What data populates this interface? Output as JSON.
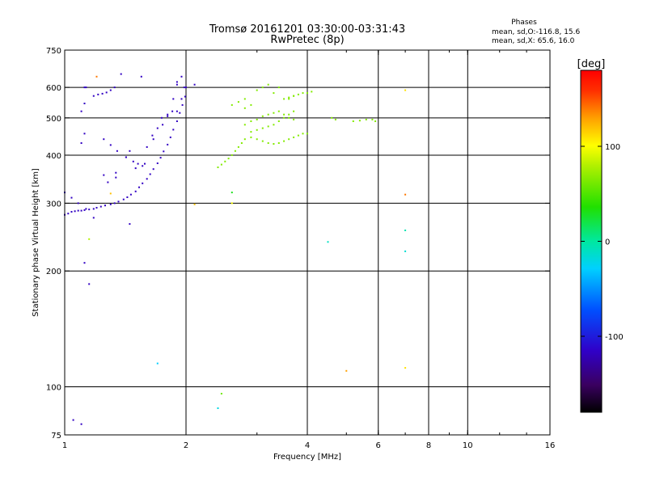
{
  "header": {
    "title": "Tromsø 20161201 03:30:00-03:31:43",
    "subtitle": "RwPretec (8p)",
    "stats_title": "Phases",
    "stats_line1": "mean, sd,O:-116.8, 15.6",
    "stats_line2": "mean, sd,X:  65.6, 16.0"
  },
  "colorbar": {
    "label": "[deg]",
    "ticks": [
      {
        "value": 100,
        "label": "100"
      },
      {
        "value": 0,
        "label": "0"
      },
      {
        "value": -100,
        "label": "-100"
      }
    ],
    "range": [
      -180,
      180
    ]
  },
  "chart_data": {
    "type": "scatter",
    "xlabel": "Frequency [MHz]",
    "ylabel": "Stationary phase Virtual Height [km]",
    "x_scale": "log",
    "y_scale": "log",
    "xlim": [
      1,
      16
    ],
    "ylim": [
      75,
      750
    ],
    "xticks": [
      {
        "value": 1,
        "label": "1"
      },
      {
        "value": 2,
        "label": "2"
      },
      {
        "value": 4,
        "label": "4"
      },
      {
        "value": 6,
        "label": "6"
      },
      {
        "value": 8,
        "label": "8"
      },
      {
        "value": 10,
        "label": "10"
      },
      {
        "value": 16,
        "label": "16"
      }
    ],
    "yticks": [
      {
        "value": 75,
        "label": "75"
      },
      {
        "value": 100,
        "label": "100"
      },
      {
        "value": 200,
        "label": "200"
      },
      {
        "value": 300,
        "label": "300"
      },
      {
        "value": 400,
        "label": "400"
      },
      {
        "value": 500,
        "label": "500"
      },
      {
        "value": 600,
        "label": "600"
      },
      {
        "value": 750,
        "label": "750"
      }
    ],
    "grid_x": [
      2,
      4,
      6,
      8,
      10
    ],
    "grid_y": [
      100,
      200,
      300,
      400,
      500,
      600
    ],
    "series": [
      {
        "mode": "O",
        "x": [
          1.0,
          1.02,
          1.04,
          1.06,
          1.08,
          1.1,
          1.12,
          1.15,
          1.18,
          1.2,
          1.23,
          1.26,
          1.3,
          1.33,
          1.36,
          1.4,
          1.43,
          1.46,
          1.5,
          1.53,
          1.56,
          1.6,
          1.63,
          1.66,
          1.7,
          1.73,
          1.76,
          1.8,
          1.83,
          1.86,
          1.9,
          1.93,
          1.96,
          1.99,
          1.1,
          1.12,
          1.25,
          1.3,
          1.35,
          1.42,
          1.48,
          1.52,
          1.56,
          1.18,
          1.21,
          1.24,
          1.27,
          1.3,
          1.33,
          1.1,
          1.12,
          1.13,
          1.28,
          1.34,
          1.42,
          1.45,
          1.5,
          1.58,
          1.66,
          1.74,
          1.8,
          1.86,
          1.9,
          1.95,
          1.6,
          1.65,
          1.7,
          1.75,
          1.8,
          1.85,
          1.9,
          1.95,
          1.98,
          1.0,
          1.04,
          1.08,
          1.13,
          1.18,
          1.25,
          1.34,
          1.45,
          1.12,
          1.15,
          1.38,
          1.55,
          1.9,
          2.0,
          2.1,
          1.05,
          1.1,
          1.12
        ],
        "y": [
          280,
          282,
          285,
          286,
          287,
          287,
          288,
          289,
          290,
          292,
          294,
          296,
          298,
          300,
          303,
          307,
          311,
          316,
          322,
          330,
          338,
          347,
          357,
          368,
          381,
          394,
          409,
          426,
          445,
          466,
          490,
          515,
          540,
          568,
          430,
          455,
          440,
          425,
          410,
          395,
          385,
          380,
          375,
          570,
          575,
          578,
          582,
          590,
          600,
          520,
          545,
          600,
          340,
          360,
          395,
          410,
          370,
          380,
          440,
          500,
          505,
          560,
          610,
          640,
          420,
          450,
          470,
          480,
          510,
          520,
          520,
          560,
          600,
          320,
          310,
          300,
          290,
          275,
          355,
          350,
          265,
          210,
          185,
          650,
          640,
          620,
          600,
          610,
          82,
          80,
          600
        ],
        "phase_deg": -116.8
      },
      {
        "mode": "X",
        "x": [
          2.4,
          2.45,
          2.5,
          2.55,
          2.6,
          2.65,
          2.7,
          2.75,
          2.8,
          2.9,
          3.0,
          3.1,
          3.2,
          3.3,
          3.4,
          3.5,
          3.6,
          3.7,
          3.8,
          3.9,
          4.0,
          2.8,
          2.9,
          3.0,
          3.1,
          3.2,
          3.3,
          3.4,
          3.5,
          3.6,
          3.7,
          2.9,
          3.0,
          3.1,
          3.2,
          3.3,
          3.4,
          3.5,
          3.6,
          3.7,
          3.5,
          3.6,
          3.7,
          3.8,
          3.9,
          4.0,
          4.1,
          4.6,
          4.7,
          5.2,
          5.4,
          5.6,
          5.8,
          5.9,
          2.6,
          2.7,
          2.8,
          3.0,
          3.1,
          3.2,
          2.8,
          2.9,
          3.3,
          3.4,
          3.6,
          3.7
        ],
        "y": [
          372,
          378,
          385,
          392,
          400,
          410,
          420,
          430,
          440,
          445,
          440,
          435,
          430,
          428,
          430,
          435,
          440,
          445,
          450,
          455,
          455,
          480,
          490,
          495,
          505,
          510,
          515,
          520,
          510,
          500,
          495,
          460,
          465,
          470,
          475,
          480,
          490,
          500,
          510,
          520,
          560,
          565,
          570,
          575,
          580,
          580,
          585,
          500,
          495,
          490,
          492,
          495,
          495,
          490,
          540,
          550,
          560,
          590,
          600,
          610,
          530,
          540,
          580,
          600,
          560,
          570
        ],
        "phase_deg": 65.6
      },
      {
        "mode": "scattered",
        "x": [
          1.2,
          1.7,
          2.1,
          2.4,
          2.45,
          2.6,
          2.6,
          4.5,
          5.0,
          7.0,
          7.0,
          7.0,
          7.0,
          7.0,
          1.15,
          1.3
        ],
        "y": [
          640,
          115,
          298,
          88,
          96,
          320,
          300,
          238,
          110,
          112,
          316,
          255,
          225,
          590,
          242,
          318
        ],
        "phase_deg": [
          140,
          -30,
          120,
          -20,
          60,
          30,
          100,
          -10,
          130,
          110,
          140,
          -5,
          -15,
          110,
          80,
          120
        ]
      }
    ]
  }
}
